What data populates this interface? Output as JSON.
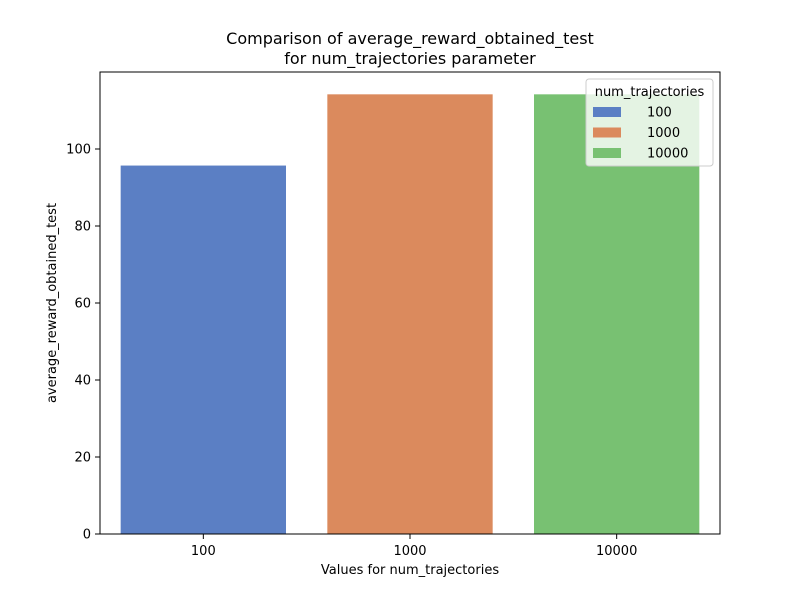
{
  "chart_data": {
    "type": "bar",
    "title_lines": [
      "Comparison of average_reward_obtained_test",
      "for num_trajectories parameter"
    ],
    "xlabel": "Values for num_trajectories",
    "ylabel": "average_reward_obtained_test",
    "categories": [
      "100",
      "1000",
      "10000"
    ],
    "values": [
      95.7,
      114.2,
      114.2
    ],
    "colors": [
      "#5b7fc4",
      "#db8a5d",
      "#78c172"
    ],
    "ylim": [
      0,
      120
    ],
    "yticks": [
      0,
      20,
      40,
      60,
      80,
      100
    ],
    "grid": false,
    "legend": {
      "title": "num_trajectories",
      "placement": "top-right",
      "entries": [
        "100",
        "1000",
        "10000"
      ]
    }
  }
}
